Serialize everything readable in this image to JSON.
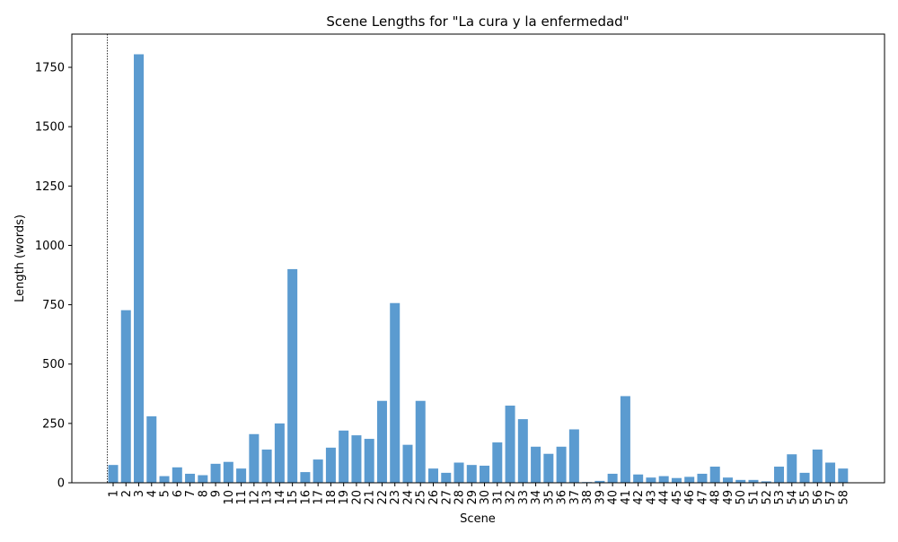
{
  "chart_data": {
    "type": "bar",
    "title": "Scene Lengths for \"La cura y la enfermedad\"",
    "xlabel": "Scene",
    "ylabel": "Length (words)",
    "ylim": [
      0,
      1890
    ],
    "yticks": [
      0,
      250,
      500,
      750,
      1000,
      1250,
      1500,
      1750
    ],
    "grid": false,
    "bar_color": "#5b9bd0",
    "categories": [
      "1",
      "2",
      "3",
      "4",
      "5",
      "6",
      "7",
      "8",
      "9",
      "10",
      "11",
      "12",
      "13",
      "14",
      "15",
      "16",
      "17",
      "18",
      "19",
      "20",
      "21",
      "22",
      "23",
      "24",
      "25",
      "26",
      "27",
      "28",
      "29",
      "30",
      "31",
      "32",
      "33",
      "34",
      "35",
      "36",
      "37",
      "38",
      "39",
      "40",
      "41",
      "42",
      "43",
      "44",
      "45",
      "46",
      "47",
      "48",
      "49",
      "50",
      "51",
      "52",
      "53",
      "54",
      "55",
      "56",
      "57",
      "58"
    ],
    "values": [
      75,
      727,
      1805,
      280,
      28,
      65,
      38,
      32,
      80,
      88,
      60,
      205,
      140,
      250,
      900,
      45,
      98,
      148,
      220,
      200,
      185,
      345,
      757,
      160,
      345,
      60,
      42,
      85,
      75,
      72,
      170,
      325,
      268,
      152,
      122,
      152,
      225,
      3,
      8,
      38,
      365,
      35,
      22,
      28,
      20,
      25,
      38,
      68,
      22,
      12,
      12,
      6,
      68,
      120,
      42,
      140,
      85,
      60
    ],
    "reference_line": {
      "style": "dotted",
      "x_category": "1"
    }
  }
}
